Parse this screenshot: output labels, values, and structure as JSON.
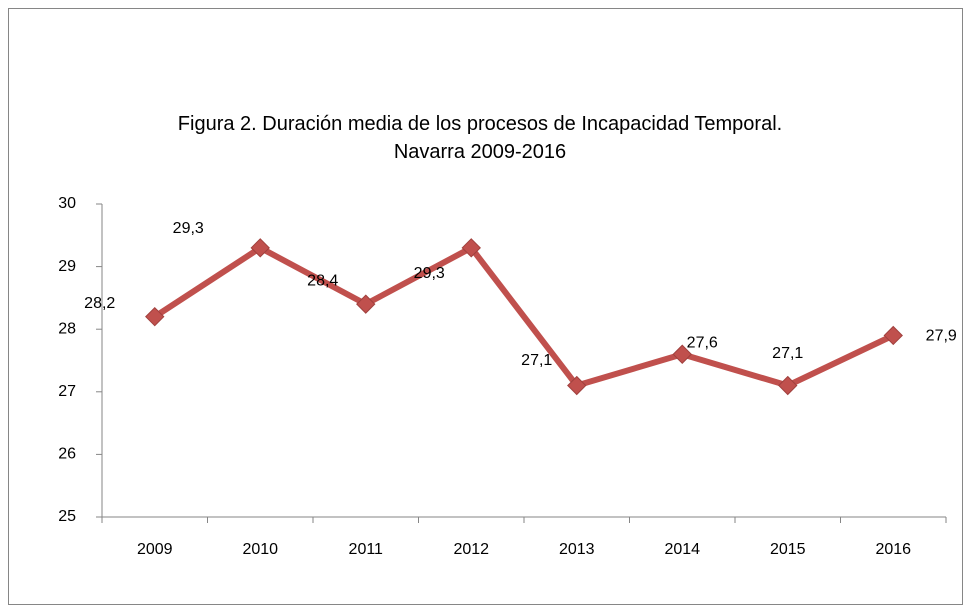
{
  "chart_data": {
    "type": "line",
    "title": "Figura 2. Duración media de los procesos de Incapacidad Temporal. Navarra 2009-2016",
    "categories": [
      "2009",
      "2010",
      "2011",
      "2012",
      "2013",
      "2014",
      "2015",
      "2016"
    ],
    "series": [
      {
        "color": "#c0504d",
        "values": [
          28.2,
          29.3,
          28.4,
          29.3,
          27.1,
          27.6,
          27.1,
          27.9
        ],
        "value_labels": [
          "28,2",
          "29,3",
          "28,4",
          "29,3",
          "27,1",
          "27,6",
          "27,1",
          "27,9"
        ]
      }
    ],
    "ylim": [
      25,
      30
    ],
    "yticks": [
      25,
      26,
      27,
      28,
      29,
      30
    ],
    "grid": false
  }
}
